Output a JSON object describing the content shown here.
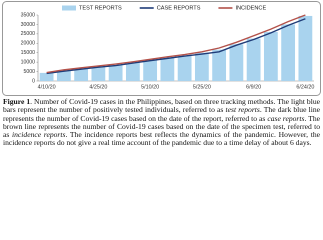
{
  "chart_data": {
    "type": "bar-line",
    "categories": [
      "4/10/20",
      null,
      null,
      "4/25/20",
      null,
      null,
      "5/10/20",
      null,
      null,
      "5/25/20",
      null,
      null,
      "6/9/20",
      null,
      null,
      "6/24/20"
    ],
    "series": [
      {
        "name": "TEST REPORTS",
        "kind": "bar",
        "color": "#a9d3ee",
        "values": [
          4300,
          5600,
          6600,
          7600,
          8500,
          9800,
          11000,
          12300,
          13400,
          15000,
          16600,
          19500,
          22500,
          26000,
          30000,
          34500
        ]
      },
      {
        "name": "CASE REPORTS",
        "kind": "line",
        "color": "#1f3c78",
        "values": [
          4000,
          5200,
          6300,
          7300,
          8200,
          9500,
          10800,
          12000,
          13200,
          14300,
          15500,
          19000,
          22000,
          25500,
          29500,
          33000
        ]
      },
      {
        "name": "INCIDENCE",
        "kind": "line",
        "color": "#b3524a",
        "values": [
          4500,
          5900,
          7000,
          8000,
          9000,
          10200,
          11500,
          12800,
          14000,
          15500,
          17500,
          20500,
          24000,
          27500,
          31500,
          35000
        ]
      }
    ],
    "ylim": [
      0,
      35000
    ],
    "yticks": [
      0,
      5000,
      10000,
      15000,
      20000,
      25000,
      30000,
      35000
    ],
    "grid": false,
    "legend": "top"
  },
  "caption": [
    {
      "text": "Figure 1",
      "bold": true
    },
    {
      "text": ". Number of Covid-19 cases in the Philippines, based on three tracking methods. The light blue bars represent the number of positively tested individuals, referred to as "
    },
    {
      "text": "test reports",
      "italic": true
    },
    {
      "text": ". The dark blue line represents the number of Covid-19 cases based on the date of the report, referred to as "
    },
    {
      "text": "case reports",
      "italic": true
    },
    {
      "text": ". The brown line represents the number of Covid-19 cases based on the date of the specimen test, referred to as "
    },
    {
      "text": "incidence reports",
      "italic": true
    },
    {
      "text": ". The incidence reports best reflects the dynamics of the pandemic. However, the incidence reports do not give a real time account of the pandemic due to a time delay of about 6 days."
    }
  ]
}
